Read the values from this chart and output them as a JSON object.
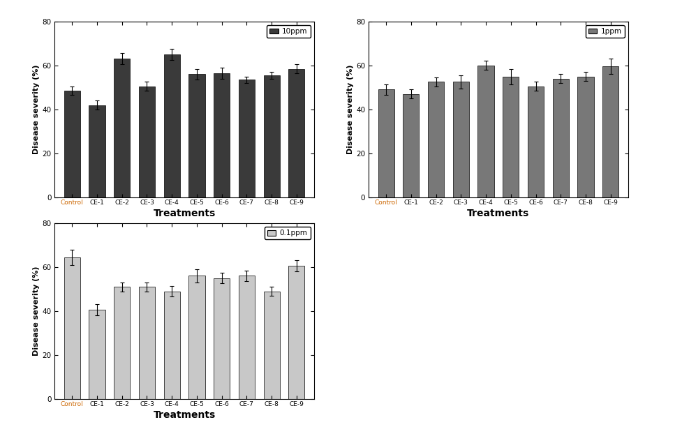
{
  "categories": [
    "Control",
    "CE-1",
    "CE-2",
    "CE-3",
    "CE-4",
    "CE-5",
    "CE-6",
    "CE-7",
    "CE-8",
    "CE-9"
  ],
  "chart1": {
    "label": "10ppm",
    "color": "#3a3a3a",
    "values": [
      48.5,
      42.0,
      63.0,
      50.5,
      65.0,
      56.0,
      56.5,
      53.5,
      55.5,
      58.5
    ],
    "errors": [
      2.0,
      2.0,
      2.5,
      2.0,
      2.5,
      2.5,
      2.5,
      1.5,
      1.5,
      2.0
    ]
  },
  "chart2": {
    "label": "1ppm",
    "color": "#787878",
    "values": [
      49.0,
      47.0,
      52.5,
      52.5,
      60.0,
      55.0,
      50.5,
      54.0,
      55.0,
      59.5
    ],
    "errors": [
      2.5,
      2.0,
      2.0,
      3.0,
      2.0,
      3.5,
      2.0,
      2.0,
      2.0,
      3.5
    ]
  },
  "chart3": {
    "label": "0.1ppm",
    "color": "#c8c8c8",
    "values": [
      64.5,
      40.5,
      51.0,
      51.0,
      49.0,
      56.0,
      55.0,
      56.0,
      49.0,
      60.5
    ],
    "errors": [
      3.5,
      2.5,
      2.0,
      2.0,
      2.5,
      3.0,
      2.5,
      2.5,
      2.0,
      2.5
    ]
  },
  "ylabel": "Disease severity (%)",
  "xlabel": "Treatments",
  "ylim": [
    0,
    80
  ],
  "yticks": [
    0,
    20,
    40,
    60,
    80
  ],
  "bar_width": 0.65,
  "figsize": [
    9.78,
    6.15
  ],
  "dpi": 100,
  "control_label_color": "#cc6600"
}
